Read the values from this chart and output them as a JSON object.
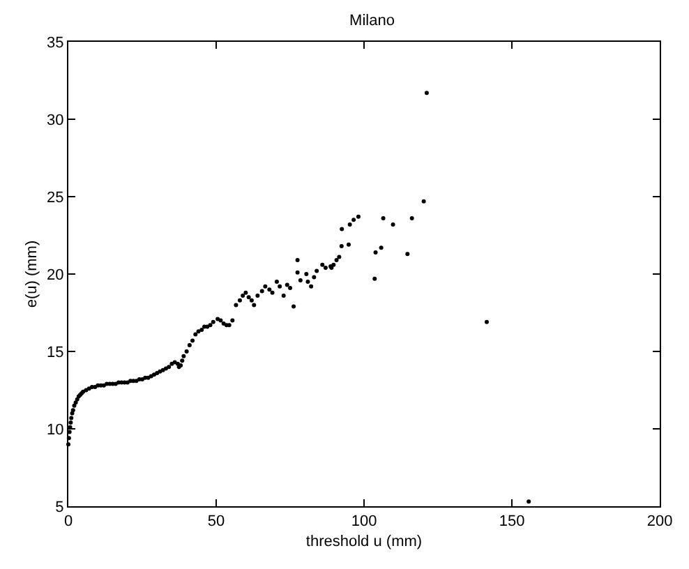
{
  "chart_data": {
    "type": "scatter",
    "title": "Milano",
    "xlabel": "threshold u (mm)",
    "ylabel": "e(u) (mm)",
    "xlim": [
      0,
      200
    ],
    "xticks": [
      0,
      50,
      100,
      150,
      200
    ],
    "ylim": [
      5,
      35
    ],
    "yticks": [
      5,
      10,
      15,
      20,
      25,
      30,
      35
    ],
    "grid": false,
    "marker": "circle",
    "series": [
      {
        "color": "#000000",
        "x": [
          0,
          0.2,
          0.4,
          0.6,
          0.8,
          1,
          1.3,
          1.6,
          2,
          2.5,
          3,
          3.5,
          4,
          4.5,
          5,
          6,
          7,
          8,
          9,
          10,
          11,
          12,
          13,
          14,
          15,
          16,
          17,
          18,
          19,
          20,
          21,
          22,
          23,
          24,
          25,
          26,
          27,
          28,
          29,
          30,
          31,
          32,
          33,
          34,
          35,
          36,
          37,
          37.4,
          38,
          38.5,
          39,
          40,
          41,
          42,
          43,
          44,
          45.1,
          46,
          47,
          48,
          49,
          50.5,
          51.5,
          52.5,
          53.5,
          54.4,
          55.5,
          56.7,
          58,
          59,
          60,
          61,
          62,
          62.8,
          64,
          65.5,
          66.6,
          68,
          69,
          70.5,
          71.5,
          72.8,
          74,
          75,
          76.2,
          77.5,
          77.5,
          78.5,
          80.5,
          81,
          82.1,
          83.1,
          84,
          85.9,
          87,
          88.7,
          89,
          89.7,
          90.7,
          91.6,
          92.4,
          92.5,
          94.8,
          95.2,
          96.5,
          98.1,
          103.6,
          103.9,
          105.8,
          106.5,
          109.8,
          114.7,
          116.2,
          120.2,
          121.2,
          141.5,
          155.7
        ],
        "values": [
          9,
          9.4,
          9.8,
          10.1,
          10.4,
          10.7,
          11,
          11.2,
          11.5,
          11.7,
          11.9,
          12.1,
          12.2,
          12.3,
          12.4,
          12.5,
          12.6,
          12.7,
          12.7,
          12.8,
          12.8,
          12.8,
          12.9,
          12.9,
          12.9,
          12.9,
          13,
          13,
          13,
          13,
          13.1,
          13.1,
          13.1,
          13.2,
          13.2,
          13.3,
          13.3,
          13.4,
          13.5,
          13.6,
          13.7,
          13.8,
          13.9,
          14,
          14.2,
          14.3,
          14.2,
          14,
          14.1,
          14.4,
          14.7,
          15,
          15.4,
          15.7,
          16.1,
          16.3,
          16.4,
          16.6,
          16.6,
          16.7,
          16.9,
          17.1,
          17,
          16.8,
          16.7,
          16.7,
          17,
          18,
          18.3,
          18.6,
          18.8,
          18.5,
          18.3,
          18,
          18.6,
          18.9,
          19.2,
          19,
          18.8,
          19.5,
          19.2,
          18.6,
          19.3,
          19.1,
          17.9,
          20.9,
          20.1,
          19.6,
          20,
          19.5,
          19.2,
          19.8,
          20.2,
          20.6,
          20.4,
          20.5,
          20.4,
          20.6,
          20.9,
          21.1,
          21.8,
          22.9,
          21.9,
          23.2,
          23.5,
          23.7,
          19.7,
          21.4,
          21.7,
          23.6,
          23.2,
          21.3,
          23.6,
          24.7,
          31.7,
          16.9,
          5.3
        ]
      }
    ]
  }
}
